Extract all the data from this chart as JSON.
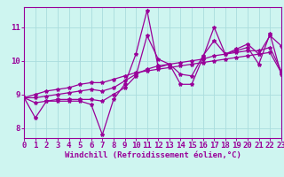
{
  "xlabel": "Windchill (Refroidissement éolien,°C)",
  "background_color": "#cef5f0",
  "line_color": "#990099",
  "grid_color": "#aadddd",
  "x": [
    0,
    1,
    2,
    3,
    4,
    5,
    6,
    7,
    8,
    9,
    10,
    11,
    12,
    13,
    14,
    15,
    16,
    17,
    18,
    19,
    20,
    21,
    22,
    23
  ],
  "line1": [
    8.9,
    8.3,
    8.8,
    8.8,
    8.8,
    8.8,
    8.7,
    7.8,
    8.85,
    9.3,
    10.2,
    11.5,
    9.8,
    9.9,
    9.3,
    9.3,
    10.1,
    11.0,
    10.2,
    10.3,
    10.4,
    9.9,
    10.8,
    9.6
  ],
  "line2": [
    8.9,
    8.75,
    8.8,
    8.85,
    8.85,
    8.85,
    8.85,
    8.8,
    9.0,
    9.2,
    9.55,
    10.75,
    10.05,
    9.9,
    9.6,
    9.55,
    10.15,
    10.6,
    10.2,
    10.35,
    10.5,
    10.2,
    10.75,
    10.45
  ],
  "line3": [
    8.9,
    8.9,
    8.95,
    9.0,
    9.05,
    9.1,
    9.15,
    9.1,
    9.2,
    9.4,
    9.6,
    9.75,
    9.85,
    9.9,
    9.95,
    10.0,
    10.05,
    10.15,
    10.2,
    10.25,
    10.3,
    10.3,
    10.4,
    9.7
  ],
  "line4": [
    8.9,
    9.0,
    9.1,
    9.15,
    9.2,
    9.3,
    9.35,
    9.35,
    9.45,
    9.55,
    9.65,
    9.7,
    9.75,
    9.8,
    9.85,
    9.9,
    9.95,
    10.0,
    10.05,
    10.1,
    10.15,
    10.2,
    10.25,
    9.65
  ],
  "xlim": [
    0,
    23
  ],
  "ylim": [
    7.7,
    11.6
  ],
  "yticks": [
    8,
    9,
    10,
    11
  ],
  "xticks": [
    0,
    1,
    2,
    3,
    4,
    5,
    6,
    7,
    8,
    9,
    10,
    11,
    12,
    13,
    14,
    15,
    16,
    17,
    18,
    19,
    20,
    21,
    22,
    23
  ],
  "marker": "*",
  "marker_size": 3,
  "linewidth": 0.9,
  "xlabel_fontsize": 6.5,
  "tick_fontsize": 6.5,
  "ytick_fontsize": 6.5
}
